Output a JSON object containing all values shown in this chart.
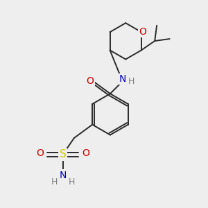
{
  "background_color": "#eeeeee",
  "atom_colors": {
    "C": "#000000",
    "H": "#808080",
    "N": "#0000cd",
    "O": "#cc0000",
    "S": "#cccc00"
  },
  "bond_color": "#2a2a2a",
  "bond_width": 1.4,
  "figsize": [
    3.0,
    3.0
  ],
  "dpi": 100
}
